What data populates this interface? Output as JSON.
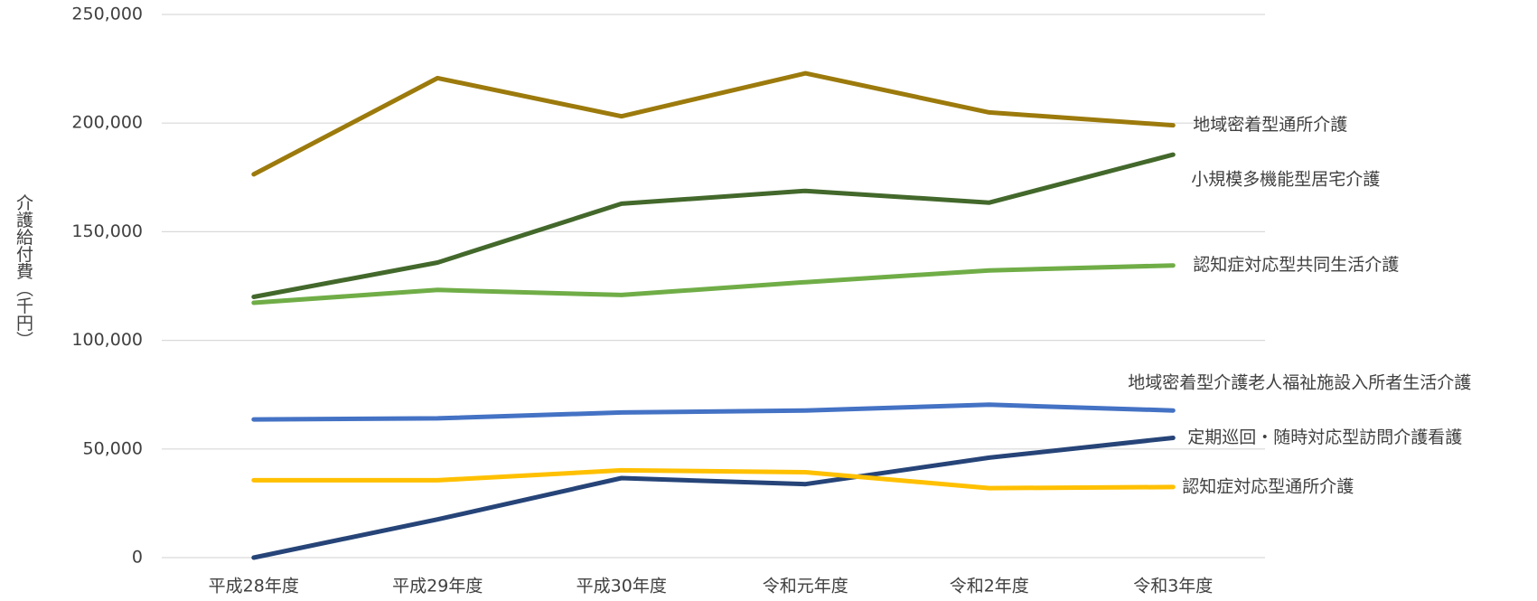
{
  "chart_data": {
    "type": "line",
    "y_label": "介護給付費（千円）",
    "categories": [
      "平成28年度",
      "平成29年度",
      "平成30年度",
      "令和元年度",
      "令和2年度",
      "令和3年度"
    ],
    "ylim": [
      0,
      250000
    ],
    "yticks": [
      0,
      {
        "value": 50000,
        "label": "50,000"
      },
      {
        "value": 100000,
        "label": "100,000"
      },
      {
        "value": 150000,
        "label": "150,000"
      },
      {
        "value": 200000,
        "label": "200,000"
      },
      {
        "value": 250000,
        "label": "250,000"
      }
    ],
    "grid": true,
    "series": [
      {
        "name": "地域密着型通所介護",
        "color": "#9c7a0c",
        "values": [
          176400,
          220700,
          203100,
          222900,
          204900,
          199000
        ]
      },
      {
        "name": "小規模多機能型居宅介護",
        "color": "#43682b",
        "values": [
          120000,
          135800,
          162900,
          168800,
          163400,
          185500
        ]
      },
      {
        "name": "認知症対応型共同生活介護",
        "color": "#70ad47",
        "values": [
          117300,
          123200,
          120900,
          126800,
          132200,
          134500
        ]
      },
      {
        "name": "地域密着型介護老人福祉施設入所者生活介護",
        "color": "#4472c4",
        "values": [
          63600,
          64100,
          66800,
          67700,
          70400,
          67700
        ]
      },
      {
        "name": "定期巡回・随時対応型訪問介護看護",
        "color": "#264478",
        "values": [
          0,
          17600,
          36600,
          33800,
          46000,
          55100
        ]
      },
      {
        "name": "認知症対応型通所介護",
        "color": "#ffc000",
        "values": [
          35600,
          35600,
          40200,
          39300,
          32000,
          32500
        ]
      }
    ]
  }
}
